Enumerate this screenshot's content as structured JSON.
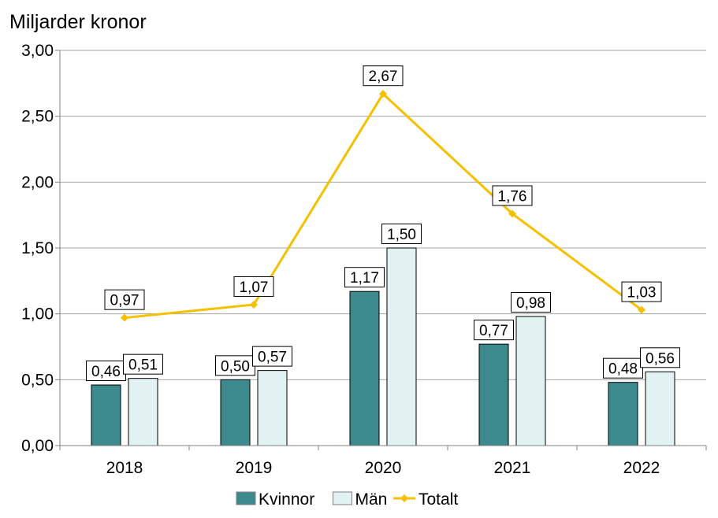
{
  "chart_data": {
    "type": "bar",
    "ylabel": "Miljarder kronor",
    "categories": [
      "2018",
      "2019",
      "2020",
      "2021",
      "2022"
    ],
    "ylim": [
      0,
      3
    ],
    "yticks": [
      "0,00",
      "0,50",
      "1,00",
      "1,50",
      "2,00",
      "2,50",
      "3,00"
    ],
    "ytick_values": [
      0,
      0.5,
      1,
      1.5,
      2,
      2.5,
      3
    ],
    "series": [
      {
        "name": "Kvinnor",
        "kind": "bar",
        "color": "#3c8a8e",
        "values": [
          0.46,
          0.5,
          1.17,
          0.77,
          0.48
        ],
        "labels": [
          "0,46",
          "0,50",
          "1,17",
          "0,77",
          "0,48"
        ]
      },
      {
        "name": "Män",
        "kind": "bar",
        "color": "#e2f1f1",
        "values": [
          0.51,
          0.57,
          1.5,
          0.98,
          0.56
        ],
        "labels": [
          "0,51",
          "0,57",
          "1,50",
          "0,98",
          "0,56"
        ]
      },
      {
        "name": "Totalt",
        "kind": "line",
        "color": "#f5c000",
        "values": [
          0.97,
          1.07,
          2.67,
          1.76,
          1.03
        ],
        "labels": [
          "0,97",
          "1,07",
          "2,67",
          "1,76",
          "1,03"
        ]
      }
    ],
    "legend": [
      "Kvinnor",
      "Män",
      "Totalt"
    ],
    "grid": true
  }
}
